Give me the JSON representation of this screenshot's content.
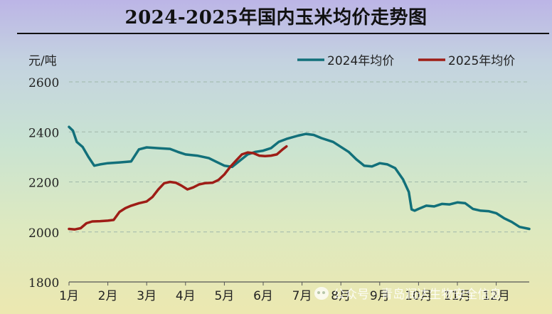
{
  "title": "2024-2025年国内玉米均价走势图",
  "watermark": "公众号 · 青岛润达生物安全信息",
  "chart_data": {
    "type": "line",
    "title": "2024-2025年国内玉米均价走势图",
    "ylabel": "元/吨",
    "ylim": [
      1800,
      2600
    ],
    "yticks": [
      1800,
      2000,
      2200,
      2400,
      2600
    ],
    "xlim": [
      1,
      12.85
    ],
    "xticks": [
      {
        "x": 1,
        "label": "1月"
      },
      {
        "x": 2,
        "label": "2月"
      },
      {
        "x": 3,
        "label": "3月"
      },
      {
        "x": 4,
        "label": "4月"
      },
      {
        "x": 5,
        "label": "5月"
      },
      {
        "x": 6,
        "label": "6月"
      },
      {
        "x": 7,
        "label": "7月"
      },
      {
        "x": 8,
        "label": "8月"
      },
      {
        "x": 9,
        "label": "9月"
      },
      {
        "x": 10,
        "label": "10月"
      },
      {
        "x": 11,
        "label": "11月"
      },
      {
        "x": 12,
        "label": "12月"
      }
    ],
    "grid": "horizontal-dashed",
    "legend_position": "top-right",
    "series": [
      {
        "name": "2024年均价",
        "color": "#12707a",
        "points": [
          [
            1.0,
            2420
          ],
          [
            1.1,
            2405
          ],
          [
            1.2,
            2360
          ],
          [
            1.35,
            2340
          ],
          [
            1.5,
            2300
          ],
          [
            1.65,
            2265
          ],
          [
            1.8,
            2270
          ],
          [
            2.0,
            2275
          ],
          [
            2.3,
            2278
          ],
          [
            2.6,
            2282
          ],
          [
            2.8,
            2330
          ],
          [
            3.0,
            2338
          ],
          [
            3.3,
            2335
          ],
          [
            3.6,
            2332
          ],
          [
            3.8,
            2320
          ],
          [
            4.0,
            2310
          ],
          [
            4.3,
            2305
          ],
          [
            4.6,
            2295
          ],
          [
            4.8,
            2280
          ],
          [
            5.0,
            2265
          ],
          [
            5.2,
            2260
          ],
          [
            5.4,
            2285
          ],
          [
            5.6,
            2310
          ],
          [
            5.8,
            2320
          ],
          [
            6.0,
            2325
          ],
          [
            6.2,
            2335
          ],
          [
            6.4,
            2360
          ],
          [
            6.6,
            2372
          ],
          [
            6.9,
            2385
          ],
          [
            7.1,
            2392
          ],
          [
            7.3,
            2388
          ],
          [
            7.5,
            2375
          ],
          [
            7.8,
            2360
          ],
          [
            8.0,
            2340
          ],
          [
            8.2,
            2320
          ],
          [
            8.4,
            2290
          ],
          [
            8.6,
            2265
          ],
          [
            8.8,
            2262
          ],
          [
            9.0,
            2275
          ],
          [
            9.2,
            2270
          ],
          [
            9.4,
            2255
          ],
          [
            9.6,
            2210
          ],
          [
            9.75,
            2160
          ],
          [
            9.82,
            2090
          ],
          [
            9.9,
            2085
          ],
          [
            10.0,
            2092
          ],
          [
            10.2,
            2105
          ],
          [
            10.4,
            2102
          ],
          [
            10.6,
            2112
          ],
          [
            10.8,
            2110
          ],
          [
            11.0,
            2118
          ],
          [
            11.2,
            2115
          ],
          [
            11.4,
            2092
          ],
          [
            11.6,
            2085
          ],
          [
            11.8,
            2083
          ],
          [
            12.0,
            2075
          ],
          [
            12.2,
            2055
          ],
          [
            12.4,
            2040
          ],
          [
            12.6,
            2020
          ],
          [
            12.85,
            2012
          ]
        ]
      },
      {
        "name": "2025年均价",
        "color": "#9e1d16",
        "points": [
          [
            1.0,
            2012
          ],
          [
            1.15,
            2010
          ],
          [
            1.3,
            2015
          ],
          [
            1.45,
            2035
          ],
          [
            1.6,
            2042
          ],
          [
            1.8,
            2043
          ],
          [
            2.0,
            2045
          ],
          [
            2.15,
            2048
          ],
          [
            2.3,
            2080
          ],
          [
            2.45,
            2095
          ],
          [
            2.6,
            2105
          ],
          [
            2.8,
            2115
          ],
          [
            3.0,
            2122
          ],
          [
            3.15,
            2140
          ],
          [
            3.3,
            2170
          ],
          [
            3.45,
            2195
          ],
          [
            3.6,
            2200
          ],
          [
            3.75,
            2197
          ],
          [
            3.9,
            2185
          ],
          [
            4.05,
            2170
          ],
          [
            4.2,
            2178
          ],
          [
            4.35,
            2190
          ],
          [
            4.5,
            2195
          ],
          [
            4.7,
            2197
          ],
          [
            4.85,
            2208
          ],
          [
            5.0,
            2230
          ],
          [
            5.15,
            2260
          ],
          [
            5.3,
            2285
          ],
          [
            5.45,
            2310
          ],
          [
            5.6,
            2318
          ],
          [
            5.75,
            2315
          ],
          [
            5.9,
            2305
          ],
          [
            6.05,
            2303
          ],
          [
            6.2,
            2305
          ],
          [
            6.35,
            2310
          ],
          [
            6.5,
            2330
          ],
          [
            6.6,
            2342
          ]
        ]
      }
    ]
  }
}
